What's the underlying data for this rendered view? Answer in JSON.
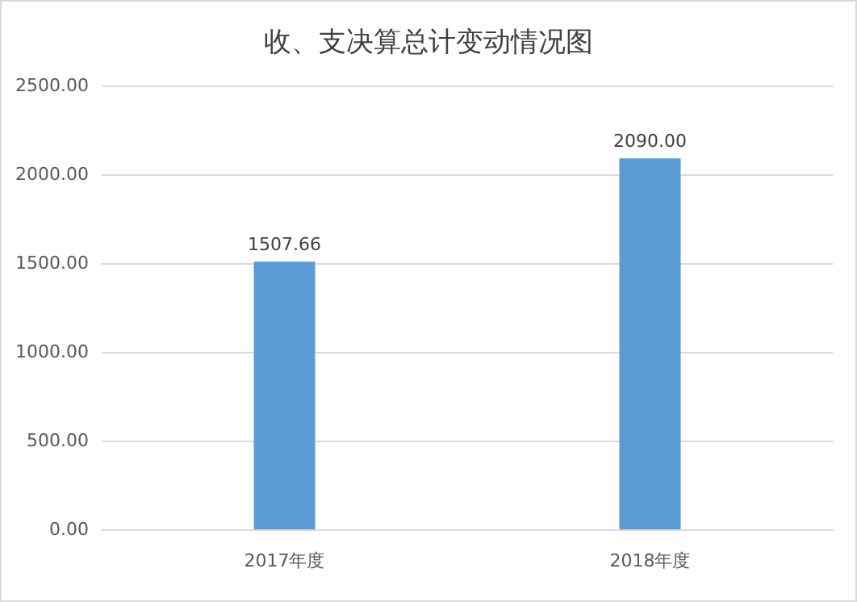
{
  "chart_data": {
    "type": "bar",
    "title": "收、支决算总计变动情况图",
    "categories": [
      "2017年度",
      "2018年度"
    ],
    "values": [
      1507.66,
      2090
    ],
    "value_labels": [
      "1507.66",
      "2090.00"
    ],
    "color": "#5b9bd5",
    "ylim": [
      0,
      2500
    ],
    "yticks": [
      {
        "value": 0,
        "label": "0.00"
      },
      {
        "value": 500,
        "label": "500.00"
      },
      {
        "value": 1000,
        "label": "1000.00"
      },
      {
        "value": 1500,
        "label": "1500.00"
      },
      {
        "value": 2000,
        "label": "2000.00"
      },
      {
        "value": 2500,
        "label": "2500.00"
      }
    ],
    "grid": "y"
  }
}
